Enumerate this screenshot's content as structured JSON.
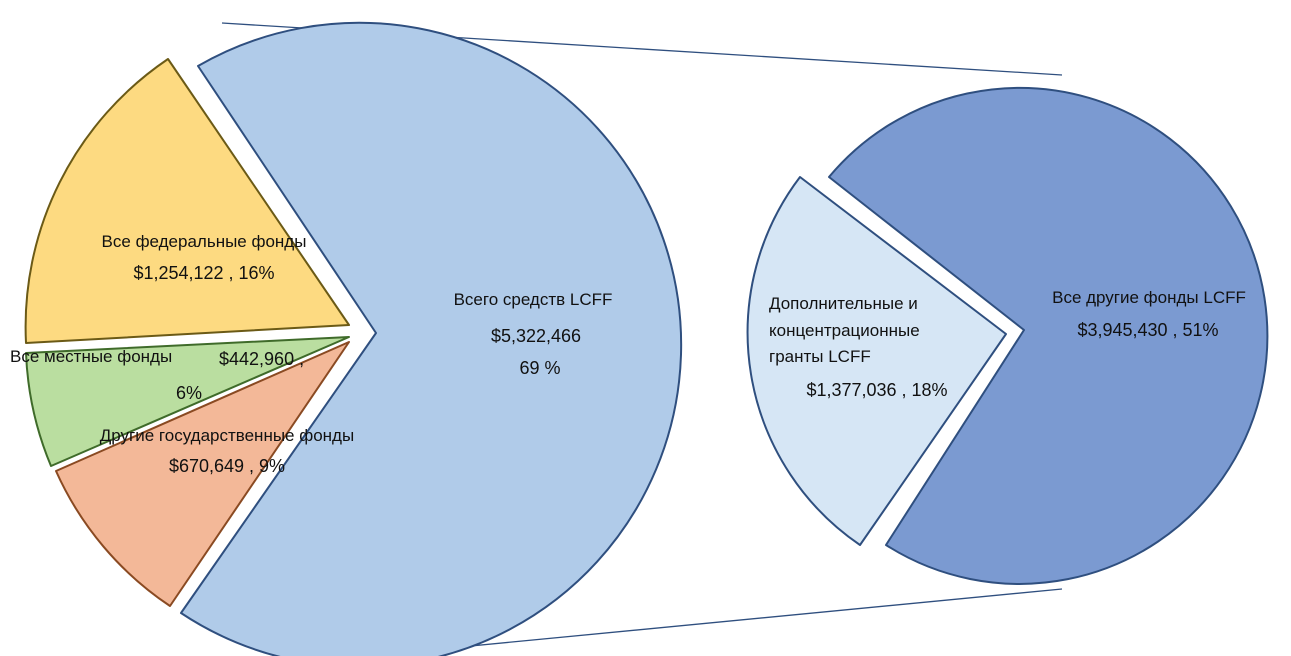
{
  "chart_data": [
    {
      "type": "pie",
      "data_name": "main-pie",
      "slices": [
        {
          "id": "lcff-total",
          "label": "Всего средств LCFF",
          "value": 5322466,
          "value_text": "$5,322,466",
          "percent_text": "69 %",
          "color": "#b0cbe9",
          "stroke": "#2f4f7f"
        },
        {
          "id": "federal",
          "label": "Все федеральные фонды",
          "value": 1254122,
          "value_text": "$1,254,122 , 16%",
          "color": "#fdda81",
          "stroke": "#6b5a16"
        },
        {
          "id": "local",
          "label": "Все местные фонды",
          "value": 442960,
          "value_text": "$442,960 ,",
          "percent_text": "6%",
          "color": "#badea0",
          "stroke": "#3f6b2a"
        },
        {
          "id": "state",
          "label": "Другие государственные фонды",
          "value": 670649,
          "value_text": "$670,649 , 9%",
          "color": "#f3b898",
          "stroke": "#8a4a22"
        }
      ]
    },
    {
      "type": "pie",
      "data_name": "lcff-breakdown-pie",
      "slices": [
        {
          "id": "grants",
          "label_lines": [
            "Дополнительные и",
            "концентрационные",
            "гранты LCFF"
          ],
          "value": 1377036,
          "value_text": "$1,377,036 , 18%",
          "color": "#d6e6f5",
          "stroke": "#2f4f7f"
        },
        {
          "id": "other-lcff",
          "label": "Все другие фонды LCFF",
          "value": 3945430,
          "value_text": "$3,945,430 , 51%",
          "color": "#7b9ad1",
          "stroke": "#2f4f7f"
        }
      ]
    }
  ]
}
